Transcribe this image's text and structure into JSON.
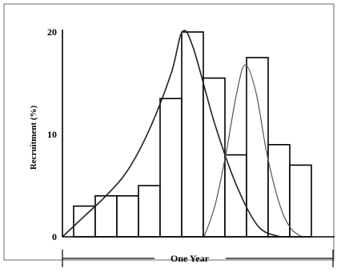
{
  "chart_data": {
    "type": "bar",
    "ylabel": "Recruitment (%)",
    "ylim": [
      0,
      20
    ],
    "yticks": [
      "0",
      "10",
      "20"
    ],
    "values": [
      3,
      4,
      4,
      5,
      13.5,
      20,
      15.5,
      8,
      17.5,
      9,
      7
    ],
    "curves": [
      {
        "name": "",
        "x": [
          0,
          1,
          2,
          3,
          4,
          5,
          5.5,
          6,
          7,
          8,
          9,
          10
        ],
        "y": [
          0,
          2,
          4,
          6.5,
          10.5,
          16,
          20,
          18.5,
          11,
          5,
          1,
          0
        ]
      },
      {
        "name": "",
        "x": [
          6.5,
          7,
          7.5,
          8,
          8.4,
          8.9,
          9.4,
          10,
          10.5,
          11
        ],
        "y": [
          0,
          3,
          8,
          14,
          16.8,
          14,
          8,
          3,
          0.8,
          0
        ]
      }
    ],
    "span_label": "One Year",
    "grid": false,
    "legend": "none"
  },
  "colors": {
    "bars": "#000000",
    "curve_dark": "#222222",
    "curve_light": "#555555",
    "frame": "#9a9a9a"
  }
}
